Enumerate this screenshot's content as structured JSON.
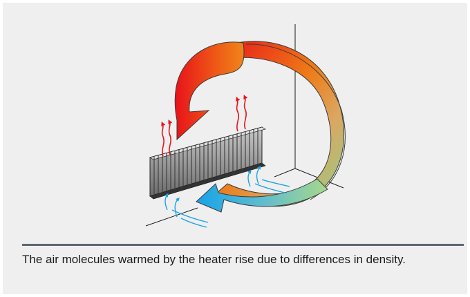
{
  "figure": {
    "caption": "The air molecules warmed by the heater rise due to differences in density.",
    "colors": {
      "warm": "#e8121b",
      "mid": "#e7a23a",
      "cool": "#8fd08a",
      "cold": "#1aa3e6",
      "panel_bg": "#efefef",
      "divider": "#5b6873"
    },
    "icons": [
      "radiator-icon",
      "warm-air-arrow-icon",
      "cool-air-arrow-icon",
      "air-circulation-loop-icon"
    ]
  }
}
